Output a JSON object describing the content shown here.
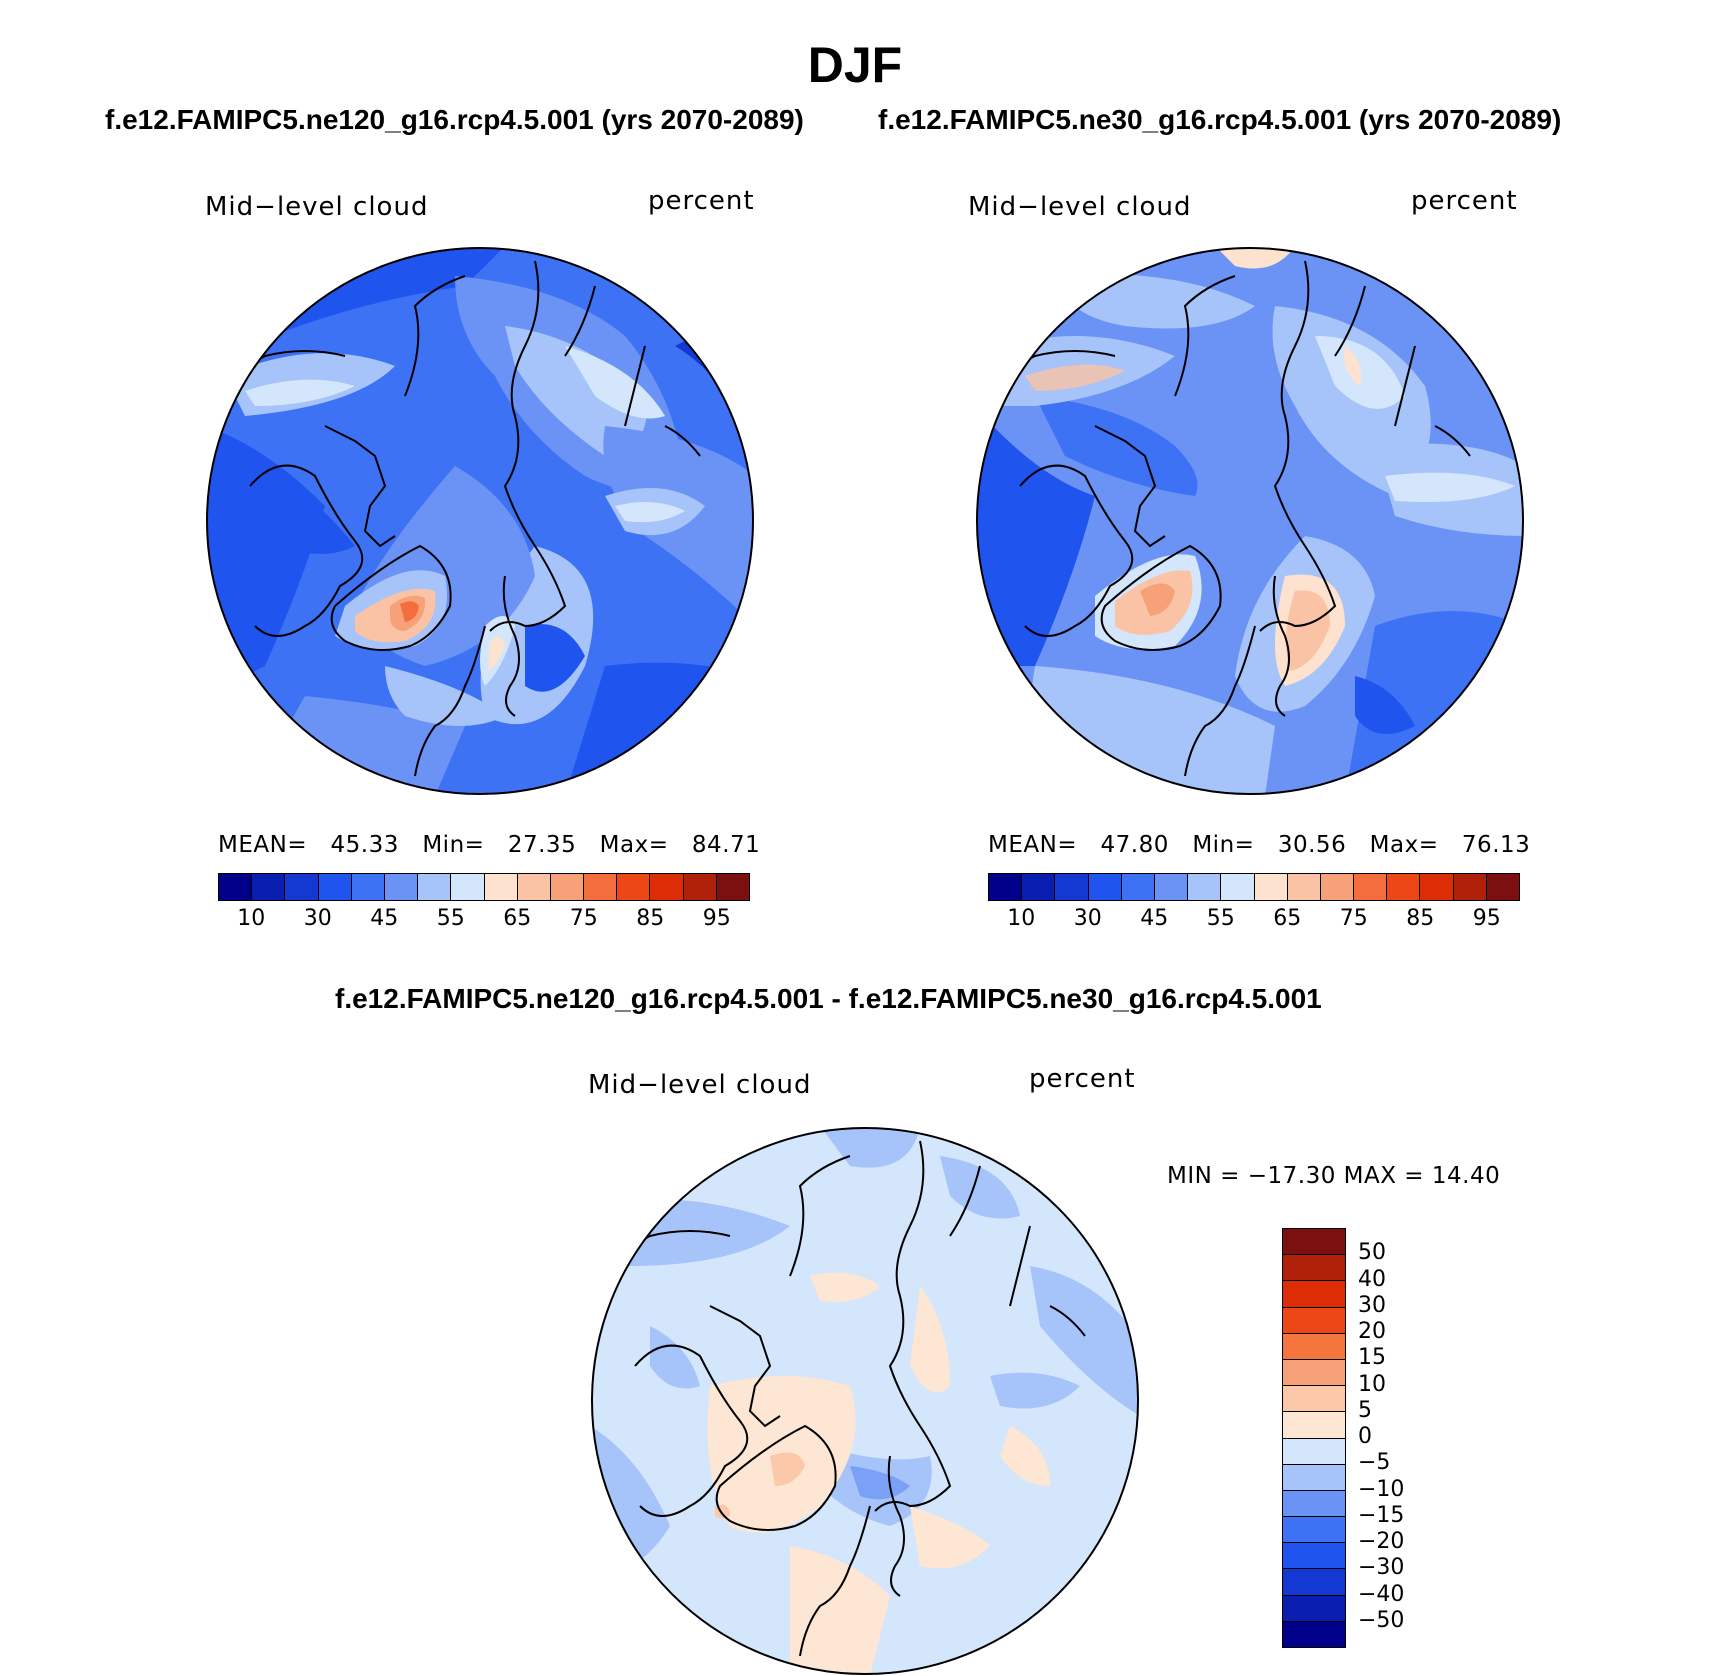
{
  "title": "DJF",
  "panels": [
    {
      "id": "ne120",
      "subtitle": "f.e12.FAMIPC5.ne120_g16.rcp4.5.001 (yrs 2070-2089)",
      "left_label": "Mid−level cloud",
      "right_label": "percent",
      "stats": {
        "mean_label": "MEAN=",
        "mean": "45.33",
        "min_label": "Min=",
        "min": "27.35",
        "max_label": "Max=",
        "max": "84.71"
      }
    },
    {
      "id": "ne30",
      "subtitle": "f.e12.FAMIPC5.ne30_g16.rcp4.5.001 (yrs 2070-2089)",
      "left_label": "Mid−level cloud",
      "right_label": "percent",
      "stats": {
        "mean_label": "MEAN=",
        "mean": "47.80",
        "min_label": "Min=",
        "min": "30.56",
        "max_label": "Max=",
        "max": "76.13"
      }
    },
    {
      "id": "diff",
      "subtitle": "f.e12.FAMIPC5.ne120_g16.rcp4.5.001 - f.e12.FAMIPC5.ne30_g16.rcp4.5.001",
      "left_label": "Mid−level cloud",
      "right_label": "percent",
      "stats_text": "MIN = −17.30 MAX =   14.40"
    }
  ],
  "chart_data": [
    {
      "type": "heatmap",
      "projection": "north polar stereographic",
      "subtitle": "f.e12.FAMIPC5.ne120_g16.rcp4.5.001 (yrs 2070-2089)",
      "variable": "Mid−level cloud",
      "units": "percent",
      "mean": 45.33,
      "min": 27.35,
      "max": 84.71,
      "levels": [
        10,
        15,
        20,
        25,
        30,
        35,
        40,
        45,
        50,
        55,
        60,
        65,
        70,
        75,
        80,
        85,
        90,
        95
      ],
      "colorbar_tick_labels": [
        "10",
        "30",
        "45",
        "55",
        "65",
        "75",
        "85",
        "95"
      ]
    },
    {
      "type": "heatmap",
      "projection": "north polar stereographic",
      "subtitle": "f.e12.FAMIPC5.ne30_g16.rcp4.5.001 (yrs 2070-2089)",
      "variable": "Mid−level cloud",
      "units": "percent",
      "mean": 47.8,
      "min": 30.56,
      "max": 76.13,
      "levels": [
        10,
        15,
        20,
        25,
        30,
        35,
        40,
        45,
        50,
        55,
        60,
        65,
        70,
        75,
        80,
        85,
        90,
        95
      ],
      "colorbar_tick_labels": [
        "10",
        "30",
        "45",
        "55",
        "65",
        "75",
        "85",
        "95"
      ]
    },
    {
      "type": "heatmap",
      "projection": "north polar stereographic",
      "subtitle": "f.e12.FAMIPC5.ne120_g16.rcp4.5.001 - f.e12.FAMIPC5.ne30_g16.rcp4.5.001",
      "variable": "Mid−level cloud",
      "units": "percent",
      "min": -17.3,
      "max": 14.4,
      "levels": [
        50,
        40,
        30,
        20,
        15,
        10,
        5,
        0,
        -5,
        -10,
        -15,
        -20,
        -30,
        -40,
        -50
      ],
      "colorbar_tick_labels": [
        "50",
        "40",
        "30",
        "20",
        "15",
        "10",
        "5",
        "0",
        "−5",
        "−10",
        "−15",
        "−20",
        "−30",
        "−40",
        "−50"
      ]
    }
  ],
  "palettes": {
    "absolute": [
      "#00008b",
      "#0a1fb0",
      "#1439d2",
      "#1f55ee",
      "#3d72f5",
      "#6a93f5",
      "#a6c3fa",
      "#d4e6fb",
      "#fde3cf",
      "#fbc3a6",
      "#f7a178",
      "#f46e3d",
      "#ee4716",
      "#dc2d07",
      "#b0210a",
      "#7c0f0f"
    ],
    "difference": [
      "#7c0f0f",
      "#b0210a",
      "#dc2d07",
      "#ee4716",
      "#f4763e",
      "#f7a178",
      "#fbc8aa",
      "#fde6d4",
      "#d4e6fb",
      "#a6c3fa",
      "#6a93f5",
      "#3d72f5",
      "#1f55ee",
      "#1439d2",
      "#0a1fb0",
      "#00008b"
    ]
  }
}
